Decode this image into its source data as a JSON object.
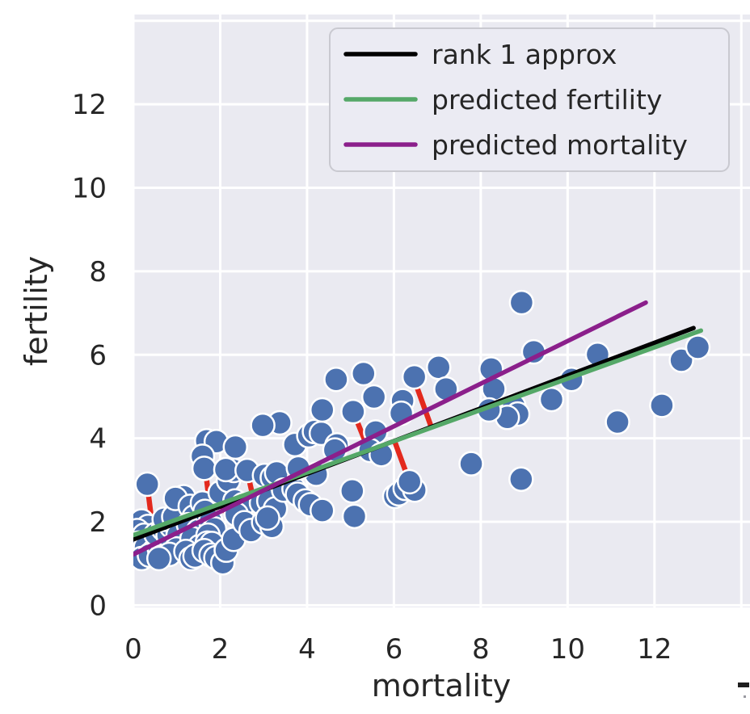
{
  "figure": {
    "background": "#ffffff",
    "plot_background": "#eaeaf1",
    "grid_color": "#ffffff",
    "text_color": "#262626"
  },
  "chart_data": {
    "type": "scatter",
    "title": "",
    "xlabel": "mortality",
    "ylabel": "fertility",
    "xlim": [
      0,
      14.2
    ],
    "ylim": [
      -0.05,
      14.15
    ],
    "grid": true,
    "xgrid": [
      0,
      2,
      4,
      6,
      8,
      10,
      12,
      14
    ],
    "ygrid": [
      0,
      2,
      4,
      6,
      8,
      10,
      12,
      14
    ],
    "xticks": [
      0,
      2,
      4,
      6,
      8,
      10,
      12
    ],
    "xtick_labels": [
      "0",
      "2",
      "4",
      "6",
      "8",
      "10",
      "12"
    ],
    "yticks": [
      0,
      2,
      4,
      6,
      8,
      10,
      12
    ],
    "ytick_labels": [
      "0",
      "2",
      "4",
      "6",
      "8",
      "10",
      "12"
    ],
    "legend": {
      "position": "upper center",
      "entries": [
        {
          "label": "rank 1 approx",
          "color": "#000000"
        },
        {
          "label": "predicted fertility",
          "color": "#55a868"
        },
        {
          "label": "predicted mortality",
          "color": "#8b1f8b"
        }
      ]
    },
    "scatter": {
      "color": "#4c72b0",
      "edge_color": "#ffffff",
      "points": [
        [
          0.32,
          2.9
        ],
        [
          0.19,
          2.02
        ],
        [
          0.34,
          1.89
        ],
        [
          0.09,
          1.79
        ],
        [
          0.25,
          1.68
        ],
        [
          0.13,
          1.49
        ],
        [
          0.28,
          1.39
        ],
        [
          0.47,
          1.29
        ],
        [
          0.19,
          1.12
        ],
        [
          0.37,
          1.2
        ],
        [
          0.6,
          1.35
        ],
        [
          0.65,
          1.54
        ],
        [
          0.52,
          1.7
        ],
        [
          0.69,
          1.83
        ],
        [
          0.8,
          1.68
        ],
        [
          0.88,
          1.89
        ],
        [
          0.71,
          2.06
        ],
        [
          0.93,
          2.12
        ],
        [
          1.03,
          1.68
        ],
        [
          1.12,
          1.48
        ],
        [
          0.99,
          1.35
        ],
        [
          0.83,
          1.22
        ],
        [
          0.59,
          1.12
        ],
        [
          1.16,
          2.6
        ],
        [
          0.97,
          2.56
        ],
        [
          1.31,
          2.37
        ],
        [
          1.4,
          2.12
        ],
        [
          1.27,
          1.93
        ],
        [
          1.5,
          1.79
        ],
        [
          1.35,
          1.6
        ],
        [
          1.53,
          1.41
        ],
        [
          1.21,
          1.29
        ],
        [
          1.33,
          1.12
        ],
        [
          1.42,
          1.18
        ],
        [
          1.59,
          2.45
        ],
        [
          1.65,
          2.25
        ],
        [
          1.78,
          2.02
        ],
        [
          1.87,
          1.83
        ],
        [
          1.72,
          1.68
        ],
        [
          1.7,
          1.49
        ],
        [
          1.81,
          1.48
        ],
        [
          1.63,
          1.31
        ],
        [
          1.79,
          1.2
        ],
        [
          1.9,
          1.14
        ],
        [
          2.06,
          1.02
        ],
        [
          2.14,
          1.32
        ],
        [
          2.31,
          1.58
        ],
        [
          2.0,
          2.7
        ],
        [
          2.19,
          2.99
        ],
        [
          2.34,
          2.5
        ],
        [
          2.52,
          2.41
        ],
        [
          2.37,
          2.18
        ],
        [
          2.56,
          1.98
        ],
        [
          2.71,
          1.79
        ],
        [
          1.69,
          3.94
        ],
        [
          1.91,
          3.92
        ],
        [
          1.59,
          3.57
        ],
        [
          1.63,
          3.28
        ],
        [
          2.35,
          3.79
        ],
        [
          2.31,
          3.23
        ],
        [
          2.13,
          3.25
        ],
        [
          2.62,
          3.23
        ],
        [
          3.02,
          3.11
        ],
        [
          3.2,
          3.06
        ],
        [
          3.3,
          3.17
        ],
        [
          2.95,
          2.45
        ],
        [
          3.12,
          2.5
        ],
        [
          3.27,
          2.31
        ],
        [
          3.46,
          2.76
        ],
        [
          3.7,
          2.79
        ],
        [
          3.78,
          2.66
        ],
        [
          3.96,
          2.5
        ],
        [
          4.08,
          2.41
        ],
        [
          4.21,
          3.14
        ],
        [
          3.0,
          1.99
        ],
        [
          3.19,
          1.89
        ],
        [
          3.09,
          2.09
        ],
        [
          3.37,
          4.37
        ],
        [
          2.98,
          4.31
        ],
        [
          3.72,
          3.85
        ],
        [
          3.8,
          3.29
        ],
        [
          4.04,
          4.06
        ],
        [
          4.17,
          4.16
        ],
        [
          4.33,
          4.12
        ],
        [
          4.35,
          4.68
        ],
        [
          4.67,
          5.41
        ],
        [
          4.69,
          3.84
        ],
        [
          4.64,
          3.72
        ],
        [
          4.35,
          2.27
        ],
        [
          5.04,
          2.74
        ],
        [
          5.09,
          2.13
        ],
        [
          5.3,
          5.55
        ],
        [
          5.06,
          4.64
        ],
        [
          5.54,
          4.99
        ],
        [
          5.58,
          4.15
        ],
        [
          5.45,
          3.71
        ],
        [
          5.71,
          3.61
        ],
        [
          6.02,
          2.61
        ],
        [
          6.11,
          2.67
        ],
        [
          6.26,
          2.8
        ],
        [
          6.48,
          2.76
        ],
        [
          6.36,
          2.96
        ],
        [
          6.2,
          4.9
        ],
        [
          6.17,
          4.6
        ],
        [
          6.47,
          5.47
        ],
        [
          7.03,
          5.7
        ],
        [
          7.2,
          5.18
        ],
        [
          7.78,
          3.39
        ],
        [
          8.24,
          5.66
        ],
        [
          8.3,
          5.18
        ],
        [
          8.76,
          4.78
        ],
        [
          8.85,
          4.58
        ],
        [
          8.61,
          4.5
        ],
        [
          8.19,
          4.68
        ],
        [
          8.93,
          3.02
        ],
        [
          8.94,
          7.25
        ],
        [
          9.22,
          6.07
        ],
        [
          9.63,
          4.93
        ],
        [
          10.09,
          5.41
        ],
        [
          10.69,
          6.01
        ],
        [
          11.15,
          4.39
        ],
        [
          12.17,
          4.79
        ],
        [
          12.62,
          5.87
        ],
        [
          13.0,
          6.18
        ]
      ]
    },
    "lines": [
      {
        "name": "rank 1 approx",
        "color": "#000000",
        "x": [
          0,
          12.9
        ],
        "y": [
          1.58,
          6.64
        ]
      },
      {
        "name": "predicted fertility",
        "color": "#55a868",
        "x": [
          0,
          13.07
        ],
        "y": [
          1.68,
          6.58
        ]
      },
      {
        "name": "predicted mortality",
        "color": "#8b1f8b",
        "x": [
          0,
          11.8
        ],
        "y": [
          1.22,
          7.25
        ]
      }
    ],
    "residual_segments": {
      "color": "#e3291d",
      "segments": [
        [
          0.32,
          2.88,
          0.48,
          1.55
        ],
        [
          0.7,
          2.02,
          0.76,
          1.5
        ],
        [
          0.89,
          1.98,
          0.96,
          1.6
        ],
        [
          0.93,
          1.96,
          0.99,
          1.6
        ],
        [
          1.15,
          2.62,
          1.28,
          1.54
        ],
        [
          1.56,
          2.43,
          1.67,
          1.63
        ],
        [
          1.66,
          3.26,
          1.82,
          1.81
        ],
        [
          1.93,
          3.32,
          2.07,
          2.27
        ],
        [
          2.31,
          2.74,
          2.46,
          2.38
        ],
        [
          2.62,
          3.22,
          2.74,
          2.66
        ],
        [
          5.07,
          4.62,
          5.41,
          3.74
        ],
        [
          6.03,
          3.89,
          6.33,
          3.04
        ],
        [
          6.49,
          5.34,
          6.85,
          4.3
        ],
        [
          8.31,
          5.16,
          8.41,
          4.9
        ],
        [
          0.26,
          1.76,
          0.29,
          1.66
        ],
        [
          0.41,
          1.73,
          0.44,
          1.64
        ],
        [
          0.55,
          1.7,
          0.58,
          1.62
        ]
      ]
    }
  }
}
